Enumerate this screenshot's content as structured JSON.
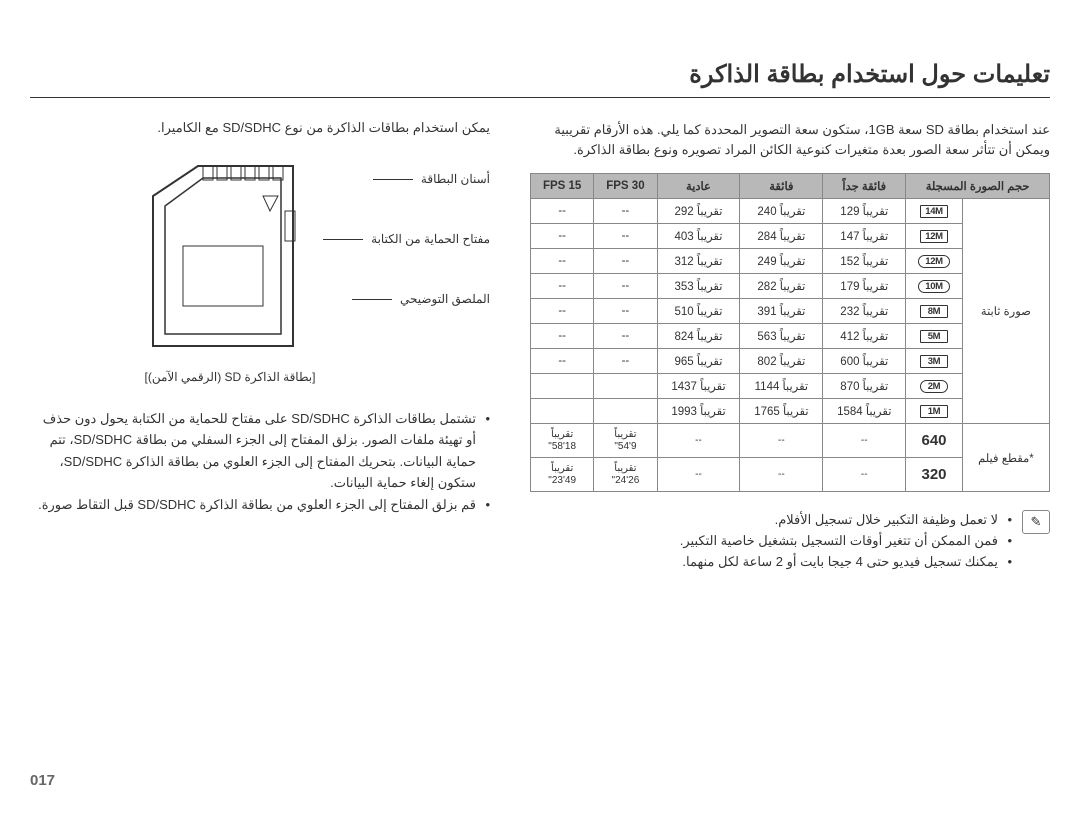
{
  "title": "تعليمات حول استخدام بطاقة الذاكرة",
  "intro_right": "يمكن استخدام بطاقات الذاكرة من نوع SD/SDHC مع الكاميرا.",
  "intro_left": "عند استخدام بطاقة SD سعة 1GB، ستكون سعة التصوير المحددة كما يلي. هذه الأرقام تقريبية ويمكن أن تتأثر سعة الصور بعدة متغيرات كنوعية الكائن المراد تصويره ونوع بطاقة الذاكرة.",
  "diagram": {
    "label1": "أسنان البطاقة",
    "label2": "مفتاح الحماية من الكتابة",
    "label3": "الملصق التوضيحي",
    "caption": "[بطاقة الذاكرة SD (الرقمي الآمن)]"
  },
  "bullets_right": [
    "تشتمل بطاقات الذاكرة SD/SDHC على مفتاح للحماية من الكتابة يحول دون حذف أو تهيئة ملفات الصور. بزلق المفتاح إلى الجزء السفلي من بطاقة SD/SDHC، تتم حماية البيانات. بتحريك المفتاح إلى الجزء العلوي من بطاقة الذاكرة SD/SDHC، ستكون إلغاء حماية البيانات.",
    "قم بزلق المفتاح إلى الجزء العلوي من بطاقة الذاكرة SD/SDHC قبل التقاط صورة."
  ],
  "notes_left": [
    "لا تعمل وظيفة التكبير خلال تسجيل الأفلام.",
    "فمن الممكن أن تتغير أوقات التسجيل بتشغيل خاصية التكبير.",
    "يمكنك تسجيل فيديو حتى 4 جيجا بايت أو 2 ساعة لكل منهما."
  ],
  "table": {
    "headers": [
      "حجم الصورة المسجلة",
      "فائقة جداً",
      "فائقة",
      "عادية",
      "FPS 30",
      "FPS 15"
    ],
    "type_col": {
      "still": "صورة ثابتة",
      "clip": "*مقطع فيلم"
    },
    "rows": [
      {
        "tag": "14M",
        "tag_style": "",
        "v": [
          "تقريباً 129",
          "تقريباً 240",
          "تقريباً 292",
          "--",
          "--"
        ]
      },
      {
        "tag": "12M",
        "tag_style": "",
        "v": [
          "تقريباً 147",
          "تقريباً 284",
          "تقريباً 403",
          "--",
          "--"
        ]
      },
      {
        "tag": "12M",
        "tag_style": "rnd",
        "v": [
          "تقريباً 152",
          "تقريباً 249",
          "تقريباً 312",
          "--",
          "--"
        ]
      },
      {
        "tag": "10M",
        "tag_style": "rnd",
        "v": [
          "تقريباً 179",
          "تقريباً 282",
          "تقريباً 353",
          "--",
          "--"
        ]
      },
      {
        "tag": "8M",
        "tag_style": "",
        "v": [
          "تقريباً 232",
          "تقريباً 391",
          "تقريباً 510",
          "--",
          "--"
        ]
      },
      {
        "tag": "5M",
        "tag_style": "",
        "v": [
          "تقريباً 412",
          "تقريباً 563",
          "تقريباً 824",
          "--",
          "--"
        ]
      },
      {
        "tag": "3M",
        "tag_style": "",
        "v": [
          "تقريباً 600",
          "تقريباً 802",
          "تقريباً 965",
          "--",
          "--"
        ]
      },
      {
        "tag": "2M",
        "tag_style": "rnd",
        "v": [
          "تقريباً 870",
          "تقريباً 1144",
          "تقريباً 1437",
          "",
          ""
        ]
      },
      {
        "tag": "1M",
        "tag_style": "",
        "v": [
          "تقريباً 1584",
          "تقريباً 1765",
          "تقريباً 1993",
          "",
          ""
        ]
      }
    ],
    "video": [
      {
        "tag": "640",
        "v": [
          "--",
          "--",
          "--",
          "تقريباً\n9'54\"",
          "تقريباً\n18'58\""
        ]
      },
      {
        "tag": "320",
        "v": [
          "--",
          "--",
          "--",
          "تقريباً\n26'24\"",
          "تقريباً\n49'23\""
        ]
      }
    ]
  },
  "page_number": "017"
}
